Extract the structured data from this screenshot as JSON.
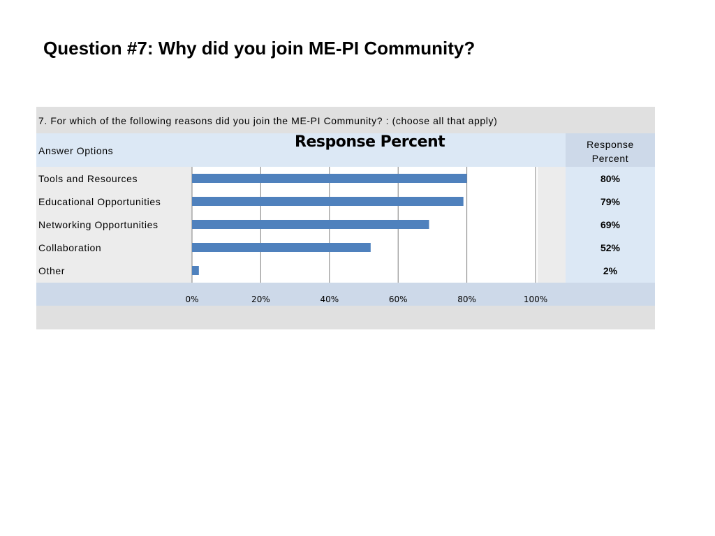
{
  "slide": {
    "title": "Question #7: Why did you join ME-PI Community?"
  },
  "table": {
    "question": "7. For which of the following reasons did you join the ME-PI Community? : (choose all that apply)",
    "answer_options_header": "Answer Options",
    "response_percent_header_line1": "Response",
    "response_percent_header_line2": "Percent",
    "rows": [
      {
        "label": "Tools and Resources",
        "percent_text": "80%"
      },
      {
        "label": "Educational Opportunities",
        "percent_text": "79%"
      },
      {
        "label": "Networking Opportunities",
        "percent_text": "69%"
      },
      {
        "label": "Collaboration",
        "percent_text": "52%"
      },
      {
        "label": "Other",
        "percent_text": "2%"
      }
    ]
  },
  "colors": {
    "bar": "#4f81bd",
    "gridline": "#808080"
  },
  "chart_data": {
    "type": "bar",
    "orientation": "horizontal",
    "title": "Response Percent",
    "categories": [
      "Tools and Resources",
      "Educational Opportunities",
      "Networking Opportunities",
      "Collaboration",
      "Other"
    ],
    "values": [
      80,
      79,
      69,
      52,
      2
    ],
    "xlim": [
      0,
      100
    ],
    "x_ticks": [
      "0%",
      "20%",
      "40%",
      "60%",
      "80%",
      "100%"
    ],
    "x_tick_values": [
      0,
      20,
      40,
      60,
      80,
      100
    ],
    "grid": true,
    "legend": "none"
  }
}
